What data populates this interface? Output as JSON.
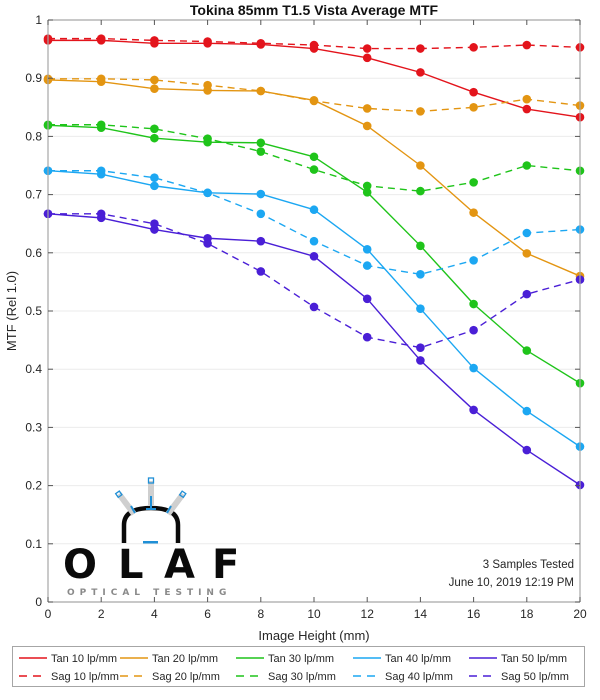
{
  "chart_data": {
    "type": "line",
    "title": "Tokina 85mm T1.5 Vista Average MTF",
    "xlabel": "Image Height (mm)",
    "ylabel": "MTF (Rel 1.0)",
    "xlim": [
      0,
      20
    ],
    "ylim": [
      0,
      1
    ],
    "x": [
      0,
      2,
      4,
      6,
      8,
      10,
      12,
      14,
      16,
      18,
      20
    ],
    "xticks": [
      "0",
      "2",
      "4",
      "6",
      "8",
      "10",
      "12",
      "14",
      "16",
      "18",
      "20"
    ],
    "yticks": [
      "0",
      "0.1",
      "0.2",
      "0.3",
      "0.4",
      "0.5",
      "0.6",
      "0.7",
      "0.8",
      "0.9",
      "1"
    ],
    "ytick_values": [
      0,
      0.1,
      0.2,
      0.3,
      0.4,
      0.5,
      0.6,
      0.7,
      0.8,
      0.9,
      1.0
    ],
    "grid": "horizontal",
    "legend_position": "bottom",
    "annotations": [
      "3 Samples Tested",
      "June 10, 2019 12:19 PM"
    ],
    "series": [
      {
        "name": "Tan 10 lp/mm",
        "color": "#e3141c",
        "style": "solid",
        "values": [
          0.965,
          0.965,
          0.96,
          0.96,
          0.958,
          0.951,
          0.935,
          0.91,
          0.876,
          0.847,
          0.833
        ]
      },
      {
        "name": "Tan 20 lp/mm",
        "color": "#e39512",
        "style": "solid",
        "values": [
          0.897,
          0.894,
          0.882,
          0.879,
          0.878,
          0.862,
          0.818,
          0.75,
          0.669,
          0.599,
          0.56
        ]
      },
      {
        "name": "Tan 30 lp/mm",
        "color": "#1fc41a",
        "style": "solid",
        "values": [
          0.819,
          0.815,
          0.797,
          0.79,
          0.789,
          0.765,
          0.704,
          0.612,
          0.512,
          0.432,
          0.376
        ]
      },
      {
        "name": "Tan 40 lp/mm",
        "color": "#1ca7f2",
        "style": "solid",
        "values": [
          0.741,
          0.735,
          0.715,
          0.703,
          0.701,
          0.674,
          0.606,
          0.504,
          0.402,
          0.328,
          0.267
        ]
      },
      {
        "name": "Tan 50 lp/mm",
        "color": "#4a1fd6",
        "style": "solid",
        "values": [
          0.667,
          0.66,
          0.64,
          0.625,
          0.62,
          0.594,
          0.521,
          0.415,
          0.33,
          0.261,
          0.201
        ]
      },
      {
        "name": "Sag 10 lp/mm",
        "color": "#e3141c",
        "style": "dashed",
        "values": [
          0.968,
          0.968,
          0.965,
          0.963,
          0.96,
          0.957,
          0.951,
          0.951,
          0.953,
          0.957,
          0.953
        ]
      },
      {
        "name": "Sag 20 lp/mm",
        "color": "#e39512",
        "style": "dashed",
        "values": [
          0.899,
          0.899,
          0.897,
          0.888,
          0.878,
          0.861,
          0.848,
          0.843,
          0.85,
          0.864,
          0.853
        ]
      },
      {
        "name": "Sag 30 lp/mm",
        "color": "#1fc41a",
        "style": "dashed",
        "values": [
          0.82,
          0.82,
          0.813,
          0.796,
          0.774,
          0.743,
          0.715,
          0.706,
          0.721,
          0.75,
          0.741
        ]
      },
      {
        "name": "Sag 40 lp/mm",
        "color": "#1ca7f2",
        "style": "dashed",
        "values": [
          0.741,
          0.741,
          0.729,
          0.703,
          0.667,
          0.62,
          0.578,
          0.563,
          0.587,
          0.634,
          0.64
        ]
      },
      {
        "name": "Sag 50 lp/mm",
        "color": "#4a1fd6",
        "style": "dashed",
        "values": [
          0.667,
          0.667,
          0.65,
          0.616,
          0.568,
          0.507,
          0.455,
          0.437,
          0.467,
          0.529,
          0.554
        ]
      }
    ]
  },
  "logo": {
    "name": "OLAF",
    "letters": [
      "O",
      "L",
      "A",
      "F"
    ],
    "tagline": "OPTICAL TESTING"
  }
}
